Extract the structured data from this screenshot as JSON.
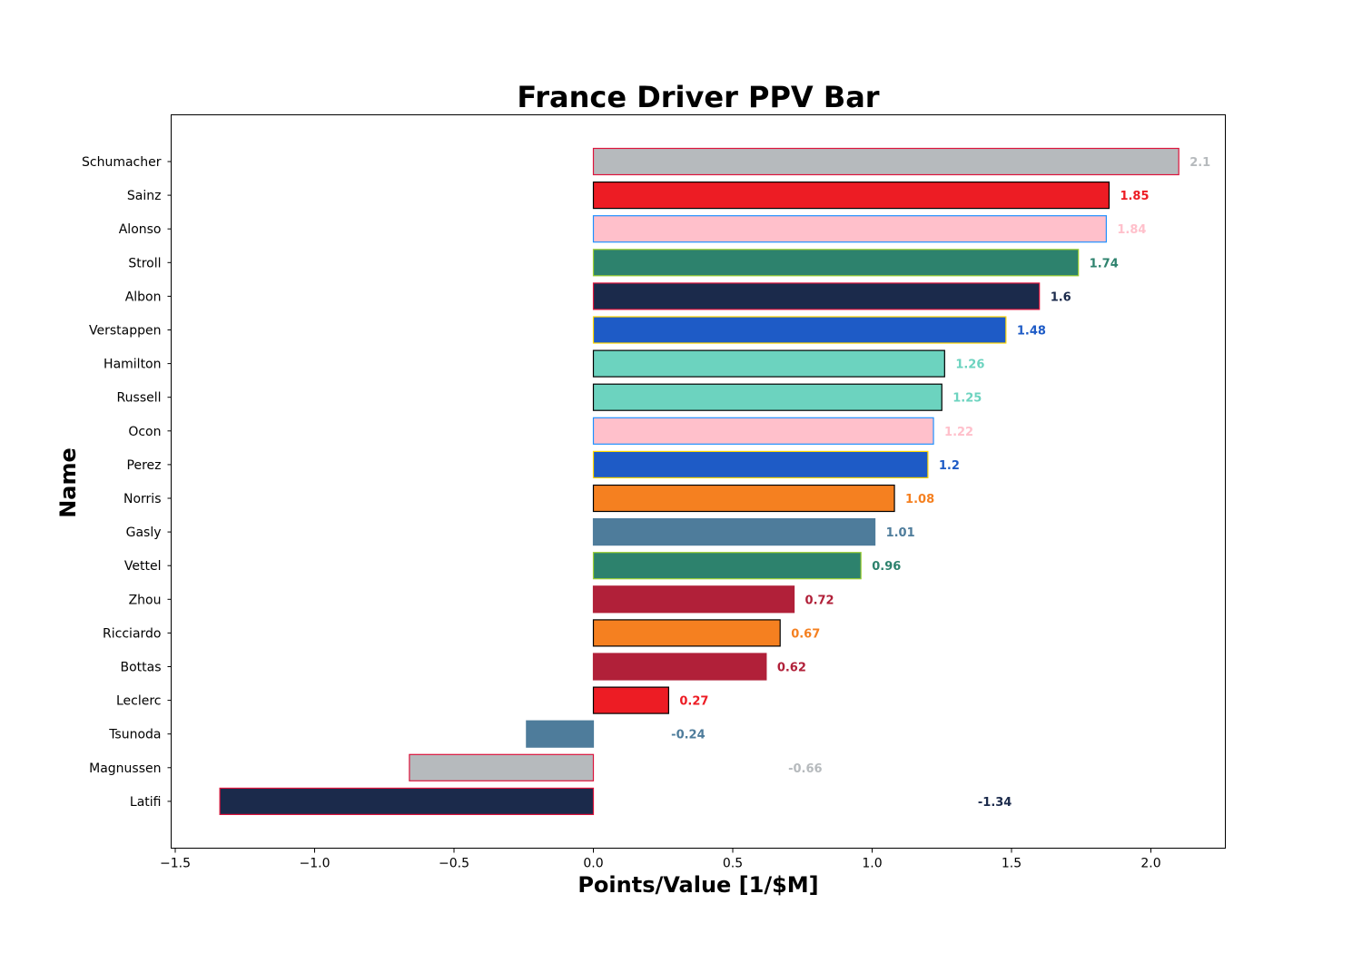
{
  "chart_data": {
    "type": "bar",
    "orientation": "horizontal",
    "title": "France Driver PPV Bar",
    "xlabel": "Points/Value [1/$M]",
    "ylabel": "Name",
    "xlim": [
      -1.5,
      2.2
    ],
    "xticks": [
      "−1.5",
      "−1.0",
      "−0.5",
      "0.0",
      "0.5",
      "1.0",
      "1.5",
      "2.0"
    ],
    "xtick_values": [
      -1.5,
      -1.0,
      -0.5,
      0.0,
      0.5,
      1.0,
      1.5,
      2.0
    ],
    "grid": false,
    "categories": [
      "Schumacher",
      "Sainz",
      "Alonso",
      "Stroll",
      "Albon",
      "Verstappen",
      "Hamilton",
      "Russell",
      "Ocon",
      "Perez",
      "Norris",
      "Gasly",
      "Vettel",
      "Zhou",
      "Ricciardo",
      "Bottas",
      "Leclerc",
      "Tsunoda",
      "Magnussen",
      "Latifi"
    ],
    "values": [
      2.1,
      1.85,
      1.84,
      1.74,
      1.6,
      1.48,
      1.26,
      1.25,
      1.22,
      1.2,
      1.08,
      1.01,
      0.96,
      0.72,
      0.67,
      0.62,
      0.27,
      -0.24,
      -0.66,
      -1.34
    ],
    "data_labels": [
      "2.1",
      "1.85",
      "1.84",
      "1.74",
      "1.6",
      "1.48",
      "1.26",
      "1.25",
      "1.22",
      "1.2",
      "1.08",
      "1.01",
      "0.96",
      "0.72",
      "0.67",
      "0.62",
      "0.27",
      "-0.24",
      "-0.66",
      "-1.34"
    ],
    "fill_colors": [
      "#B6BABD",
      "#ED1C24",
      "#FFC0CB",
      "#2D826D",
      "#1B2A4B",
      "#1E5BC6",
      "#6CD3BF",
      "#6CD3BF",
      "#FFC0CB",
      "#1E5BC6",
      "#F58020",
      "#4E7C9B",
      "#2D826D",
      "#B12039",
      "#F58020",
      "#B12039",
      "#ED1C24",
      "#4E7C9B",
      "#B6BABD",
      "#1B2A4B"
    ],
    "edge_colors": [
      "#DC143C",
      "#000000",
      "#1E90FF",
      "#9ACD32",
      "#DC143C",
      "#FFD700",
      "#000000",
      "#000000",
      "#1E90FF",
      "#FFD700",
      "#000000",
      "#4E7C9B",
      "#9ACD32",
      "#B12039",
      "#000000",
      "#B12039",
      "#000000",
      "#4E7C9B",
      "#DC143C",
      "#DC143C"
    ]
  }
}
